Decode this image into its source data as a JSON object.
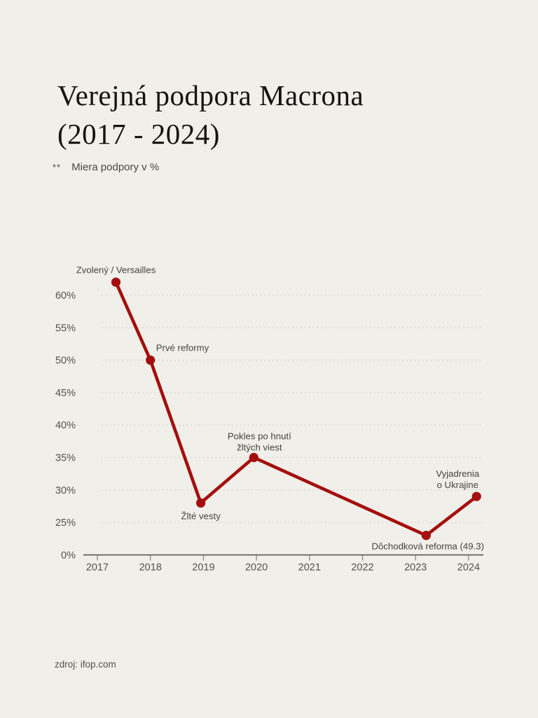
{
  "page": {
    "background_color": "#f0efe9"
  },
  "header": {
    "title": "Verejná podpora Macrona\n(2017 - 2024)",
    "subtitle_marker": "**",
    "subtitle": "Miera podpory v %"
  },
  "footer": {
    "source": "zdroj: ifop.com"
  },
  "chart_data": {
    "type": "line",
    "title": "Verejná podpora Macrona (2017 - 2024)",
    "ylabel": "Miera podpory v %",
    "line_color": "#a40e0e",
    "marker_color": "#a40e0e",
    "grid": "dotted horizontal",
    "legend": "none",
    "x_tick_labels": [
      "2017",
      "2018",
      "2019",
      "2020",
      "2021",
      "2022",
      "2023",
      "2024"
    ],
    "y_tick_labels": [
      "60%",
      "55%",
      "50%",
      "45%",
      "40%",
      "35%",
      "30%",
      "25%",
      "0%"
    ],
    "y_axis_break_below": 25,
    "ylim": [
      0,
      65
    ],
    "points": [
      {
        "x": 2017.35,
        "y": 62,
        "label": "Zvolený / Versailles"
      },
      {
        "x": 2018.0,
        "y": 50,
        "label": "Prvé reformy"
      },
      {
        "x": 2018.95,
        "y": 28,
        "label": "Žlté vesty"
      },
      {
        "x": 2019.95,
        "y": 35,
        "label": "Pokles po hnutí\nžltých viest"
      },
      {
        "x": 2023.2,
        "y": 23,
        "label": "Dôchodková reforma (49.3)"
      },
      {
        "x": 2024.15,
        "y": 29,
        "label": "Vyjadrenia\no Ukrajine"
      }
    ]
  }
}
